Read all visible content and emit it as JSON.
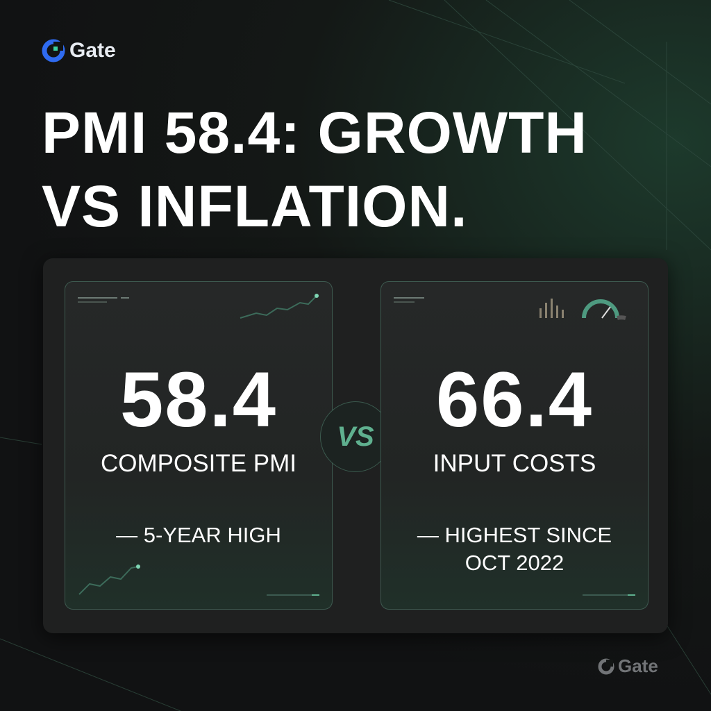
{
  "brand": "Gate",
  "title_lines": [
    "PMI 58.4: GROWTH",
    "VS INFLATION."
  ],
  "cards": [
    {
      "value": 58.4,
      "label": "COMPOSITE PMI",
      "note": "— 5-YEAR HIGH"
    },
    {
      "value": 66.4,
      "label": "INPUT COSTS",
      "note": "— HIGHEST SINCE OCT 2022"
    }
  ],
  "vs": "VS",
  "watermark": "Gate"
}
